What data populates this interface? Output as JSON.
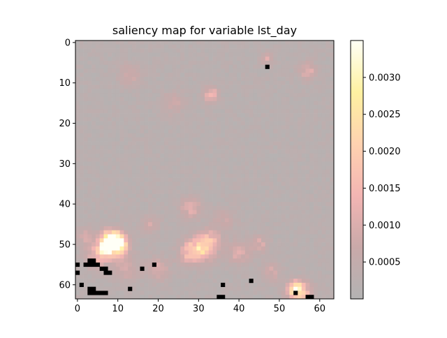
{
  "chart_data": {
    "type": "heatmap",
    "title": "saliency map for variable lst_day",
    "xlabel": "",
    "ylabel": "",
    "grid_size": 64,
    "xlim": [
      -0.5,
      63.5
    ],
    "ylim": [
      63.5,
      -0.5
    ],
    "x_ticks": [
      0,
      10,
      20,
      30,
      40,
      50,
      60
    ],
    "y_ticks": [
      0,
      10,
      20,
      30,
      40,
      50,
      60
    ],
    "colorbar": {
      "min": 0.0,
      "max": 0.0035,
      "ticks": [
        0.0005,
        0.001,
        0.0015,
        0.002,
        0.0025,
        0.003
      ],
      "tick_labels": [
        "0.0005",
        "0.0010",
        "0.0015",
        "0.0020",
        "0.0025",
        "0.0030"
      ],
      "colormap": [
        "#b3b3b3",
        "#c9a9a9",
        "#f3b5b3",
        "#ffd2b0",
        "#fff1a1",
        "#fffff6"
      ]
    },
    "background_value": 0.0001,
    "hotspots": [
      {
        "x": 8,
        "y": 49,
        "value": 0.0032,
        "radius": 1.6
      },
      {
        "x": 10,
        "y": 49,
        "value": 0.0024,
        "radius": 1.4
      },
      {
        "x": 7,
        "y": 51,
        "value": 0.0026,
        "radius": 1.2
      },
      {
        "x": 10,
        "y": 51,
        "value": 0.0018,
        "radius": 1.8
      },
      {
        "x": 5,
        "y": 53,
        "value": 0.0012,
        "radius": 2.0
      },
      {
        "x": 31,
        "y": 51,
        "value": 0.0016,
        "radius": 2.2
      },
      {
        "x": 28,
        "y": 52,
        "value": 0.0011,
        "radius": 2.0
      },
      {
        "x": 33,
        "y": 49,
        "value": 0.0009,
        "radius": 1.8
      },
      {
        "x": 54,
        "y": 61,
        "value": 0.003,
        "radius": 1.0
      },
      {
        "x": 55,
        "y": 62,
        "value": 0.0016,
        "radius": 2.0
      },
      {
        "x": 33,
        "y": 13,
        "value": 0.0014,
        "radius": 1.2
      },
      {
        "x": 57,
        "y": 7,
        "value": 0.0009,
        "radius": 1.5
      },
      {
        "x": 47,
        "y": 4,
        "value": 0.0008,
        "radius": 1.0
      },
      {
        "x": 28,
        "y": 41,
        "value": 0.0009,
        "radius": 1.8
      },
      {
        "x": 40,
        "y": 52,
        "value": 0.0008,
        "radius": 2.0
      },
      {
        "x": 45,
        "y": 50,
        "value": 0.0007,
        "radius": 1.6
      },
      {
        "x": 20,
        "y": 56,
        "value": 0.0007,
        "radius": 2.0
      },
      {
        "x": 2,
        "y": 48,
        "value": 0.0007,
        "radius": 1.6
      },
      {
        "x": 18,
        "y": 45,
        "value": 0.0006,
        "radius": 1.5
      },
      {
        "x": 12,
        "y": 56,
        "value": 0.0006,
        "radius": 2.2
      },
      {
        "x": 48,
        "y": 57,
        "value": 0.0006,
        "radius": 1.8
      },
      {
        "x": 36,
        "y": 44,
        "value": 0.0005,
        "radius": 2.0
      },
      {
        "x": 24,
        "y": 15,
        "value": 0.0005,
        "radius": 2.0
      },
      {
        "x": 13,
        "y": 8,
        "value": 0.0005,
        "radius": 2.0
      }
    ],
    "masked_cells": [
      [
        47,
        6
      ],
      [
        0,
        55
      ],
      [
        0,
        57
      ],
      [
        1,
        60
      ],
      [
        2,
        55
      ],
      [
        3,
        54
      ],
      [
        4,
        54
      ],
      [
        3,
        55
      ],
      [
        4,
        55
      ],
      [
        5,
        55
      ],
      [
        6,
        56
      ],
      [
        7,
        56
      ],
      [
        7,
        57
      ],
      [
        8,
        57
      ],
      [
        3,
        61
      ],
      [
        4,
        61
      ],
      [
        3,
        62
      ],
      [
        4,
        62
      ],
      [
        5,
        62
      ],
      [
        6,
        62
      ],
      [
        7,
        62
      ],
      [
        13,
        61
      ],
      [
        16,
        56
      ],
      [
        19,
        55
      ],
      [
        35,
        63
      ],
      [
        36,
        63
      ],
      [
        36,
        60
      ],
      [
        43,
        59
      ],
      [
        54,
        62
      ],
      [
        57,
        63
      ],
      [
        58,
        63
      ]
    ]
  }
}
